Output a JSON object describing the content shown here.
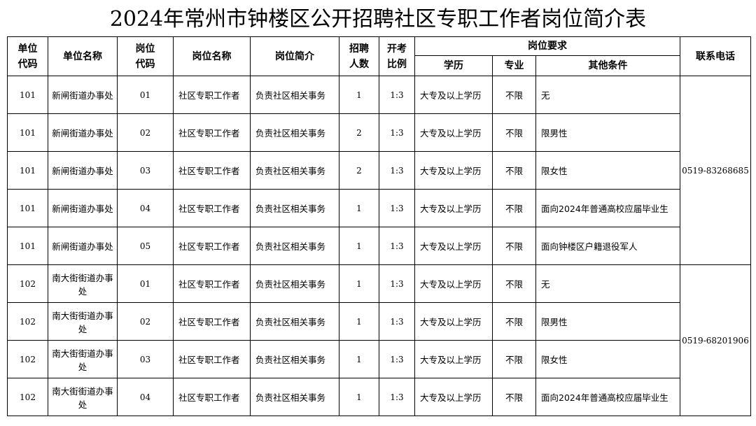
{
  "title": "2024年常州市钟楼区公开招聘社区专职工作者岗位简介表",
  "headers": {
    "unit_code": "单位代码",
    "unit_name": "单位名称",
    "post_code": "岗位代码",
    "post_name": "岗位名称",
    "post_desc": "岗位简介",
    "hire_count": "招聘人数",
    "exam_ratio": "开考比例",
    "requirements": "岗位要求",
    "education": "学历",
    "major": "专业",
    "other": "其他条件",
    "phone": "联系电话"
  },
  "rows": [
    {
      "unit_code": "101",
      "unit_name": "新闸街道办事处",
      "post_code": "01",
      "post_name": "社区专职工作者",
      "post_desc": "负责社区相关事务",
      "hire_count": "1",
      "exam_ratio": "1:3",
      "education": "大专及以上学历",
      "major": "不限",
      "other": "无"
    },
    {
      "unit_code": "101",
      "unit_name": "新闸街道办事处",
      "post_code": "02",
      "post_name": "社区专职工作者",
      "post_desc": "负责社区相关事务",
      "hire_count": "2",
      "exam_ratio": "1:3",
      "education": "大专及以上学历",
      "major": "不限",
      "other": "限男性"
    },
    {
      "unit_code": "101",
      "unit_name": "新闸街道办事处",
      "post_code": "03",
      "post_name": "社区专职工作者",
      "post_desc": "负责社区相关事务",
      "hire_count": "2",
      "exam_ratio": "1:3",
      "education": "大专及以上学历",
      "major": "不限",
      "other": "限女性"
    },
    {
      "unit_code": "101",
      "unit_name": "新闸街道办事处",
      "post_code": "04",
      "post_name": "社区专职工作者",
      "post_desc": "负责社区相关事务",
      "hire_count": "1",
      "exam_ratio": "1:3",
      "education": "大专及以上学历",
      "major": "不限",
      "other": "面向2024年普通高校应届毕业生"
    },
    {
      "unit_code": "101",
      "unit_name": "新闸街道办事处",
      "post_code": "05",
      "post_name": "社区专职工作者",
      "post_desc": "负责社区相关事务",
      "hire_count": "1",
      "exam_ratio": "1:3",
      "education": "大专及以上学历",
      "major": "不限",
      "other": "面向钟楼区户籍退役军人"
    },
    {
      "unit_code": "102",
      "unit_name": "南大街街道办事处",
      "post_code": "01",
      "post_name": "社区专职工作者",
      "post_desc": "负责社区相关事务",
      "hire_count": "1",
      "exam_ratio": "1:3",
      "education": "大专及以上学历",
      "major": "不限",
      "other": "无"
    },
    {
      "unit_code": "102",
      "unit_name": "南大街街道办事处",
      "post_code": "02",
      "post_name": "社区专职工作者",
      "post_desc": "负责社区相关事务",
      "hire_count": "1",
      "exam_ratio": "1:3",
      "education": "大专及以上学历",
      "major": "不限",
      "other": "限男性"
    },
    {
      "unit_code": "102",
      "unit_name": "南大街街道办事处",
      "post_code": "03",
      "post_name": "社区专职工作者",
      "post_desc": "负责社区相关事务",
      "hire_count": "1",
      "exam_ratio": "1:3",
      "education": "大专及以上学历",
      "major": "不限",
      "other": "限女性"
    },
    {
      "unit_code": "102",
      "unit_name": "南大街街道办事处",
      "post_code": "04",
      "post_name": "社区专职工作者",
      "post_desc": "负责社区相关事务",
      "hire_count": "1",
      "exam_ratio": "1:3",
      "education": "大专及以上学历",
      "major": "不限",
      "other": "面向2024年普通高校应届毕业生"
    }
  ],
  "phones": [
    {
      "rows": 5,
      "number": "0519-83268685"
    },
    {
      "rows": 4,
      "number": "0519-68201906"
    }
  ]
}
